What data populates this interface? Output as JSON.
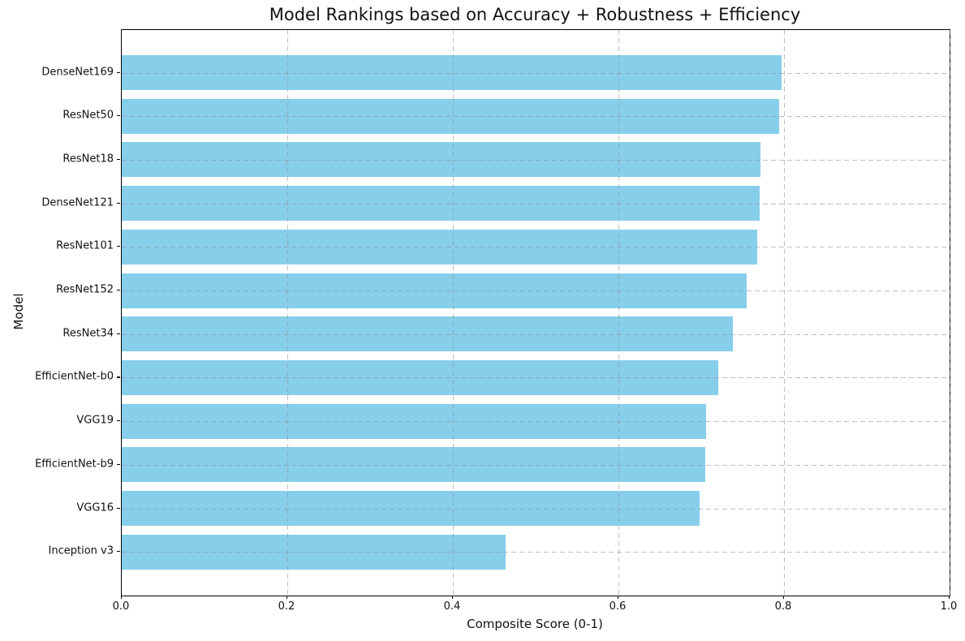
{
  "chart_data": {
    "type": "bar",
    "orientation": "horizontal",
    "title": "Model Rankings based on Accuracy + Robustness + Efficiency",
    "xlabel": "Composite Score (0-1)",
    "ylabel": "Model",
    "categories": [
      "DenseNet169",
      "ResNet50",
      "ResNet18",
      "DenseNet121",
      "ResNet101",
      "ResNet152",
      "ResNet34",
      "EfficientNet-b0",
      "VGG19",
      "EfficientNet-b9",
      "VGG16",
      "Inception v3"
    ],
    "values": [
      0.797,
      0.794,
      0.772,
      0.771,
      0.768,
      0.755,
      0.738,
      0.721,
      0.706,
      0.705,
      0.698,
      0.464
    ],
    "xlim": [
      0.0,
      1.0
    ],
    "xticks": [
      0.0,
      0.2,
      0.4,
      0.6,
      0.8,
      1.0
    ],
    "xtick_labels": [
      "0.0",
      "0.2",
      "0.4",
      "0.6",
      "0.8",
      "1.0"
    ],
    "grid": true,
    "grid_style": "dashed",
    "legend": false,
    "bar_color": "#87CEEB",
    "background_color": "#ffffff",
    "spine_color": "#000000"
  }
}
